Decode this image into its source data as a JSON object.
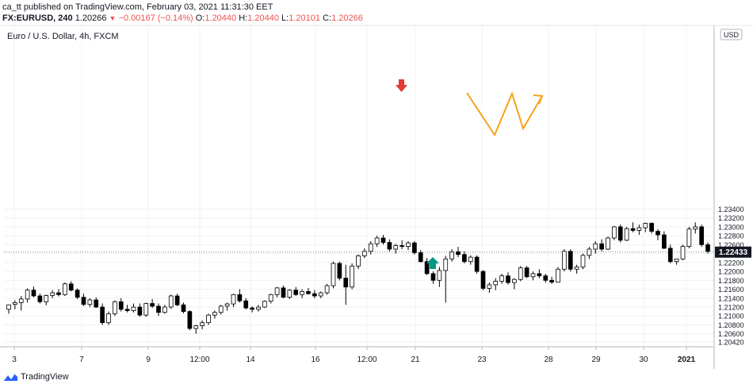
{
  "header": {
    "published": "ca_tt published on TradingView.com, February 03, 2021 11:31:30 EET",
    "symbol": "FX:EURUSD, 240",
    "last": "1.20266",
    "change": "−0.00167 (−0.14%)",
    "o_label": "O:",
    "o": "1.20440",
    "h_label": "H:",
    "h": "1.20440",
    "l_label": "L:",
    "l": "1.20101",
    "c_label": "C:",
    "c": "1.20266"
  },
  "chart_title": "Euro / U.S. Dollar, 4h, FXCM",
  "currency": "USD",
  "footer_brand": "TradingView",
  "colors": {
    "down_arrow": "#e53935",
    "up_arrow": "#089981",
    "pattern": "#f7a21b",
    "candle_down": "#000000",
    "candle_up": "#ffffff",
    "price_label_bg": "#131722"
  },
  "chart_data": {
    "type": "candlestick",
    "symbol": "EURUSD",
    "timeframe": "4h",
    "ylim": [
      1.2031,
      1.2752
    ],
    "y_ticks": [
      "1.20420",
      "1.20600",
      "1.20800",
      "1.21000",
      "1.21200",
      "1.21400",
      "1.21600",
      "1.21800",
      "1.22000",
      "1.22200",
      "1.22400",
      "1.22600",
      "1.22800",
      "1.23000",
      "1.23200",
      "1.23400"
    ],
    "x_ticks": [
      "3",
      "7",
      "9",
      "12:00",
      "14",
      "16",
      "12:00",
      "21",
      "23",
      "28",
      "29",
      "30",
      "2021"
    ],
    "current_price": "1.22433",
    "candles": [
      [
        1.2115,
        1.2126,
        1.2105,
        1.2125
      ],
      [
        1.2126,
        1.2135,
        1.2115,
        1.213
      ],
      [
        1.213,
        1.2145,
        1.2112,
        1.2138
      ],
      [
        1.2138,
        1.2162,
        1.213,
        1.2158
      ],
      [
        1.2158,
        1.2166,
        1.2142,
        1.2145
      ],
      [
        1.2145,
        1.215,
        1.2128,
        1.2132
      ],
      [
        1.2132,
        1.2148,
        1.2124,
        1.2146
      ],
      [
        1.2146,
        1.2158,
        1.214,
        1.2152
      ],
      [
        1.2152,
        1.216,
        1.2144,
        1.2148
      ],
      [
        1.2148,
        1.2175,
        1.2145,
        1.2172
      ],
      [
        1.2172,
        1.2178,
        1.2155,
        1.2158
      ],
      [
        1.2158,
        1.2162,
        1.2138,
        1.2142
      ],
      [
        1.2142,
        1.215,
        1.2122,
        1.2126
      ],
      [
        1.2126,
        1.214,
        1.212,
        1.2136
      ],
      [
        1.2136,
        1.2142,
        1.2118,
        1.212
      ],
      [
        1.212,
        1.2128,
        1.208,
        1.2085
      ],
      [
        1.2085,
        1.211,
        1.208,
        1.2105
      ],
      [
        1.2105,
        1.2135,
        1.21,
        1.2132
      ],
      [
        1.2132,
        1.214,
        1.211,
        1.2115
      ],
      [
        1.2115,
        1.2125,
        1.2108,
        1.2112
      ],
      [
        1.2112,
        1.2128,
        1.2108,
        1.212
      ],
      [
        1.212,
        1.2128,
        1.2098,
        1.2102
      ],
      [
        1.2102,
        1.213,
        1.2098,
        1.2128
      ],
      [
        1.2128,
        1.2138,
        1.2118,
        1.2122
      ],
      [
        1.2122,
        1.2128,
        1.21,
        1.2108
      ],
      [
        1.2108,
        1.2125,
        1.2105,
        1.212
      ],
      [
        1.212,
        1.2148,
        1.2116,
        1.2145
      ],
      [
        1.2145,
        1.215,
        1.2122,
        1.2125
      ],
      [
        1.2125,
        1.213,
        1.2106,
        1.211
      ],
      [
        1.211,
        1.2113,
        1.2068,
        1.2072
      ],
      [
        1.2072,
        1.208,
        1.206,
        1.2078
      ],
      [
        1.2078,
        1.209,
        1.207,
        1.2085
      ],
      [
        1.2085,
        1.2105,
        1.208,
        1.2102
      ],
      [
        1.2102,
        1.2112,
        1.2094,
        1.2108
      ],
      [
        1.2108,
        1.2125,
        1.2103,
        1.2122
      ],
      [
        1.2122,
        1.213,
        1.2112,
        1.2127
      ],
      [
        1.2127,
        1.215,
        1.212,
        1.2148
      ],
      [
        1.2148,
        1.216,
        1.213,
        1.2134
      ],
      [
        1.2134,
        1.214,
        1.2115,
        1.2118
      ],
      [
        1.2118,
        1.2122,
        1.2108,
        1.2115
      ],
      [
        1.2115,
        1.2125,
        1.211,
        1.212
      ],
      [
        1.212,
        1.2135,
        1.2118,
        1.2133
      ],
      [
        1.2133,
        1.215,
        1.2128,
        1.2148
      ],
      [
        1.2148,
        1.2165,
        1.2142,
        1.2163
      ],
      [
        1.2163,
        1.2168,
        1.214,
        1.2142
      ],
      [
        1.2142,
        1.216,
        1.2138,
        1.2158
      ],
      [
        1.2158,
        1.2165,
        1.2145,
        1.2148
      ],
      [
        1.2148,
        1.216,
        1.214,
        1.2155
      ],
      [
        1.2155,
        1.2163,
        1.2148,
        1.215
      ],
      [
        1.215,
        1.2158,
        1.214,
        1.2145
      ],
      [
        1.2145,
        1.2155,
        1.214,
        1.2152
      ],
      [
        1.2152,
        1.2172,
        1.2148,
        1.2168
      ],
      [
        1.2168,
        1.2222,
        1.2162,
        1.2218
      ],
      [
        1.2218,
        1.2222,
        1.218,
        1.2185
      ],
      [
        1.2185,
        1.2215,
        1.2125,
        1.2165
      ],
      [
        1.2165,
        1.2218,
        1.216,
        1.2212
      ],
      [
        1.2212,
        1.2238,
        1.2205,
        1.2235
      ],
      [
        1.2235,
        1.2252,
        1.223,
        1.2245
      ],
      [
        1.2245,
        1.2268,
        1.2238,
        1.2262
      ],
      [
        1.2262,
        1.228,
        1.2255,
        1.2275
      ],
      [
        1.2275,
        1.2282,
        1.226,
        1.2265
      ],
      [
        1.2265,
        1.2272,
        1.2245,
        1.225
      ],
      [
        1.225,
        1.2262,
        1.224,
        1.2258
      ],
      [
        1.2258,
        1.227,
        1.225,
        1.2256
      ],
      [
        1.2256,
        1.2268,
        1.2248,
        1.2264
      ],
      [
        1.2264,
        1.2268,
        1.2238,
        1.2242
      ],
      [
        1.2242,
        1.2248,
        1.222,
        1.2222
      ],
      [
        1.2222,
        1.223,
        1.2192,
        1.2195
      ],
      [
        1.2195,
        1.22,
        1.2172,
        1.218
      ],
      [
        1.218,
        1.221,
        1.2165,
        1.2202
      ],
      [
        1.2202,
        1.2235,
        1.213,
        1.2228
      ],
      [
        1.2228,
        1.225,
        1.2222,
        1.2244
      ],
      [
        1.2244,
        1.2255,
        1.2232,
        1.2238
      ],
      [
        1.2238,
        1.2245,
        1.2218,
        1.2222
      ],
      [
        1.2222,
        1.2236,
        1.2215,
        1.2232
      ],
      [
        1.2232,
        1.2236,
        1.2195,
        1.22
      ],
      [
        1.22,
        1.2203,
        1.2158,
        1.2162
      ],
      [
        1.2162,
        1.2175,
        1.2152,
        1.217
      ],
      [
        1.217,
        1.2185,
        1.2158,
        1.2178
      ],
      [
        1.2178,
        1.2195,
        1.2172,
        1.219
      ],
      [
        1.219,
        1.2198,
        1.217,
        1.2175
      ],
      [
        1.2175,
        1.2185,
        1.216,
        1.2182
      ],
      [
        1.2182,
        1.2212,
        1.2178,
        1.2208
      ],
      [
        1.2208,
        1.2212,
        1.2185,
        1.2188
      ],
      [
        1.2188,
        1.22,
        1.218,
        1.2195
      ],
      [
        1.2195,
        1.2205,
        1.2185,
        1.219
      ],
      [
        1.219,
        1.2195,
        1.2175,
        1.218
      ],
      [
        1.218,
        1.2188,
        1.2172,
        1.2176
      ],
      [
        1.2176,
        1.221,
        1.2175,
        1.2205
      ],
      [
        1.2205,
        1.225,
        1.22,
        1.2245
      ],
      [
        1.2245,
        1.225,
        1.22,
        1.2205
      ],
      [
        1.2205,
        1.2215,
        1.2195,
        1.221
      ],
      [
        1.221,
        1.224,
        1.2205,
        1.2236
      ],
      [
        1.2236,
        1.2255,
        1.2228,
        1.225
      ],
      [
        1.225,
        1.2268,
        1.224,
        1.2262
      ],
      [
        1.2262,
        1.2272,
        1.2245,
        1.225
      ],
      [
        1.225,
        1.2278,
        1.2248,
        1.2275
      ],
      [
        1.2275,
        1.2302,
        1.227,
        1.23
      ],
      [
        1.23,
        1.2305,
        1.2265,
        1.227
      ],
      [
        1.227,
        1.23,
        1.2268,
        1.2296
      ],
      [
        1.2296,
        1.231,
        1.2288,
        1.2292
      ],
      [
        1.2292,
        1.2305,
        1.2282,
        1.2298
      ],
      [
        1.2298,
        1.231,
        1.2288,
        1.2308
      ],
      [
        1.2308,
        1.231,
        1.2285,
        1.229
      ],
      [
        1.229,
        1.2295,
        1.227,
        1.2282
      ],
      [
        1.2282,
        1.229,
        1.225,
        1.2252
      ],
      [
        1.2252,
        1.226,
        1.2218,
        1.2222
      ],
      [
        1.2222,
        1.2228,
        1.2215,
        1.2228
      ],
      [
        1.2228,
        1.226,
        1.2225,
        1.2256
      ],
      [
        1.2256,
        1.23,
        1.2252,
        1.2295
      ],
      [
        1.2295,
        1.231,
        1.2285,
        1.23
      ],
      [
        1.23,
        1.2305,
        1.2255,
        1.226
      ],
      [
        1.226,
        1.2265,
        1.224,
        1.2245
      ]
    ]
  }
}
